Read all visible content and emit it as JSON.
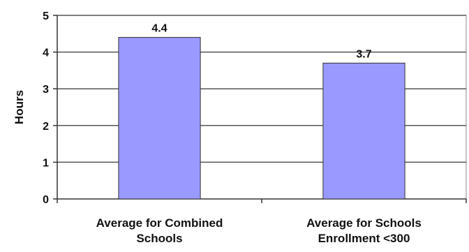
{
  "chart_data": {
    "type": "bar",
    "categories": [
      [
        "Average for Combined",
        "Schools"
      ],
      [
        "Average for Schools",
        "Enrollment <300"
      ]
    ],
    "values": [
      4.4,
      3.7
    ],
    "data_labels": [
      "4.4",
      "3.7"
    ],
    "title": "",
    "xlabel": "",
    "ylabel": "Hours",
    "ylim": [
      0,
      5
    ],
    "yticks": [
      0,
      1,
      2,
      3,
      4,
      5
    ],
    "grid": true,
    "legend": "none",
    "colors": {
      "bar_fill": "#9999ff",
      "bar_stroke": "#333333",
      "grid": "#555555",
      "plot_background": "#ffffff"
    }
  }
}
